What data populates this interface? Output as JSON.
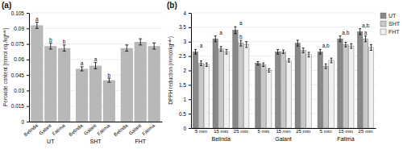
{
  "chart_data": [
    {
      "type": "bar",
      "title": "(a)",
      "ylabel": "Peroxide content [mmol eq./kgᵇᵈᵉ]",
      "categories": [
        "Belinda",
        "Galant",
        "Fatima"
      ],
      "series": [
        {
          "name": "UT",
          "values": [
            0.093,
            0.073,
            0.071
          ],
          "errors": [
            0.003,
            0.003,
            0.003
          ],
          "annotations": [
            "a",
            "b",
            "b"
          ]
        },
        {
          "name": "SHT",
          "values": [
            0.051,
            0.054,
            0.04
          ],
          "errors": [
            0.002,
            0.003,
            0.002
          ],
          "annotations": [
            "a",
            "a",
            "b"
          ]
        },
        {
          "name": "FHT",
          "values": [
            0.071,
            0.077,
            0.073
          ],
          "errors": [
            0.003,
            0.003,
            0.003
          ]
        }
      ],
      "color": "#b8b8b8",
      "ylim": [
        0,
        0.105
      ],
      "yticks": [
        0,
        0.015,
        0.03,
        0.045,
        0.06,
        0.075,
        0.09,
        0.105
      ],
      "grid": true
    },
    {
      "type": "bar",
      "title": "(b)",
      "ylabel": "DPPH reduction (mmol/kgᵇᵈᵉ)",
      "groups": [
        "Belinda",
        "Galant",
        "Fatima"
      ],
      "categories": [
        "5 min",
        "15 min",
        "25 min"
      ],
      "series": [
        {
          "name": "UT",
          "color": "#888888",
          "values": [
            [
              2.65,
              3.1,
              3.4
            ],
            [
              2.25,
              2.65,
              2.95
            ],
            [
              2.65,
              3.1,
              3.35
            ]
          ],
          "errors": [
            [
              0.08,
              0.1,
              0.12
            ],
            [
              0.06,
              0.08,
              0.1
            ],
            [
              0.08,
              0.1,
              0.1
            ]
          ]
        },
        {
          "name": "SHT",
          "color": "#c8c8c8",
          "values": [
            [
              2.25,
              2.75,
              2.95
            ],
            [
              2.2,
              2.65,
              2.7
            ],
            [
              2.15,
              2.9,
              3.1
            ]
          ],
          "errors": [
            [
              0.08,
              0.08,
              0.1
            ],
            [
              0.06,
              0.06,
              0.08
            ],
            [
              0.08,
              0.08,
              0.1
            ]
          ]
        },
        {
          "name": "FHT",
          "color": "#f0f0f0",
          "values": [
            [
              2.2,
              2.65,
              2.9
            ],
            [
              2.0,
              2.35,
              2.55
            ],
            [
              2.35,
              2.85,
              2.8
            ]
          ],
          "errors": [
            [
              0.06,
              0.08,
              0.1
            ],
            [
              0.06,
              0.06,
              0.08
            ],
            [
              0.08,
              0.08,
              0.1
            ]
          ]
        }
      ],
      "annotations": [
        {
          "text": "a",
          "group": "Belinda",
          "category": "5 min"
        },
        {
          "text": "a",
          "group": "Belinda",
          "category": "15 min"
        },
        {
          "text": "a",
          "group": "Belinda",
          "category": "25 min"
        },
        {
          "text": "a,b",
          "group": "Fatima",
          "category": "5 min"
        },
        {
          "text": "a,b",
          "group": "Fatima",
          "category": "15 min"
        },
        {
          "text": "a,b",
          "group": "Fatima",
          "category": "25 min"
        },
        {
          "text": "b",
          "group": "Belinda",
          "category": "25 min",
          "series": "SHT"
        },
        {
          "text": "a",
          "group": "Fatima",
          "category": "25 min",
          "series": "SHT"
        }
      ],
      "ylim": [
        0,
        4
      ],
      "yticks": [
        0,
        0.5,
        1,
        1.5,
        2,
        2.5,
        3,
        3.5,
        4
      ],
      "grid": true,
      "legend": "right"
    }
  ]
}
